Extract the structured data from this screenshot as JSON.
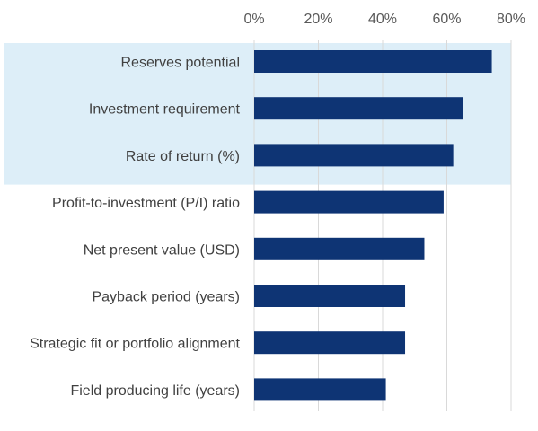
{
  "chart_data": {
    "type": "bar",
    "orientation": "horizontal",
    "categories": [
      "Reserves potential",
      "Investment requirement",
      "Rate of return (%)",
      "Profit-to-investment (P/I) ratio",
      "Net present value (USD)",
      "Payback period (years)",
      "Strategic fit or portfolio alignment",
      "Field producing life (years)"
    ],
    "values": [
      74,
      65,
      62,
      59,
      53,
      47,
      47,
      41
    ],
    "value_unit": "%",
    "x_ticks": [
      "0%",
      "20%",
      "40%",
      "60%",
      "80%"
    ],
    "xlim": [
      0,
      80
    ],
    "x_axis_position": "top",
    "grid": true,
    "highlighted_categories": [
      0,
      1,
      2
    ],
    "colors": {
      "bar": "#0e3474",
      "highlight": "#ddeef8",
      "grid": "#d9d9d9"
    }
  }
}
